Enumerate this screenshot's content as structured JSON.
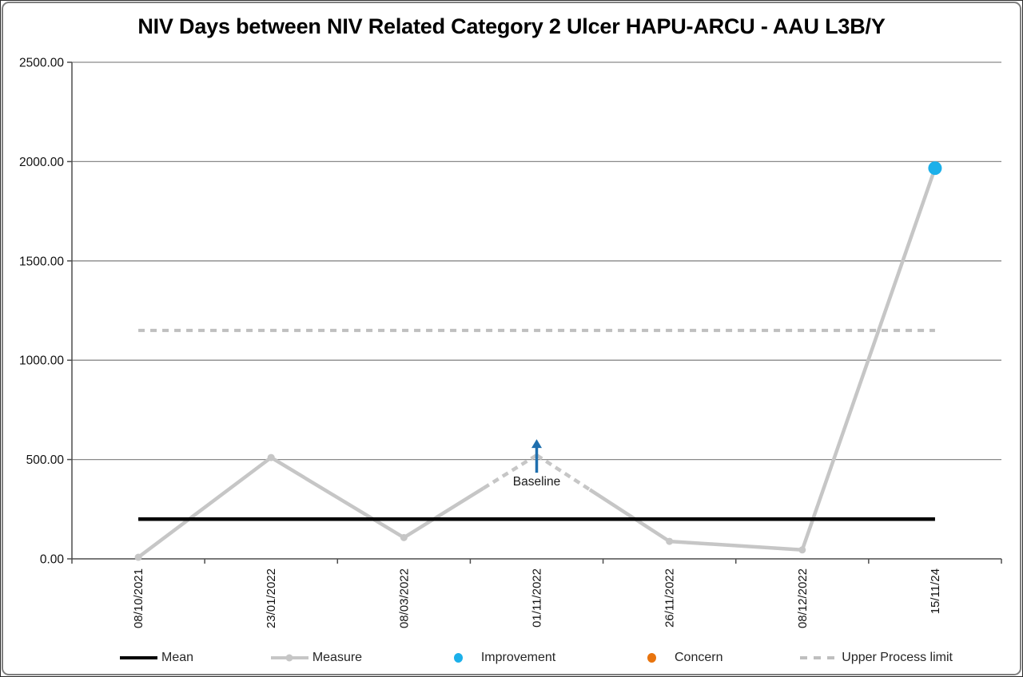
{
  "title": "NIV Days between NIV Related Category 2 Ulcer HAPU-ARCU - AAU L3B/Y",
  "chart_data": {
    "type": "line",
    "title": "NIV Days between NIV Related Category 2 Ulcer HAPU-ARCU - AAU L3B/Y",
    "categories": [
      "08/10/2021",
      "23/01/2022",
      "08/03/2022",
      "01/11/2022",
      "26/11/2022",
      "08/12/2022",
      "15/11/24"
    ],
    "series": [
      {
        "name": "Measure",
        "type": "line",
        "values": [
          8,
          510,
          107,
          522,
          88,
          45,
          1967
        ]
      },
      {
        "name": "Mean",
        "type": "hline",
        "value": 200
      },
      {
        "name": "Upper Process limit",
        "type": "hline-dashed",
        "value": 1150
      }
    ],
    "special_points": {
      "improvement_index": 6,
      "improvement_value": 1967
    },
    "annotations": {
      "baseline": {
        "label": "Baseline",
        "category_index": 3
      }
    },
    "ylim": [
      0,
      2500
    ],
    "ytick_labels": [
      "2500.00",
      "2000.00",
      "1500.00",
      "1000.00",
      "500.00",
      "0.00"
    ],
    "grid": true,
    "legend_position": "bottom",
    "xlabel": "",
    "ylabel": ""
  },
  "legend": {
    "items": [
      {
        "label": "Mean",
        "swatch": "line",
        "color": "#000000"
      },
      {
        "label": "Measure",
        "swatch": "line-marker",
        "color": "#C6C6C6"
      },
      {
        "label": "Improvement",
        "swatch": "dot",
        "color": "#1CB0EA"
      },
      {
        "label": "Concern",
        "swatch": "dot",
        "color": "#E8740E"
      },
      {
        "label": "Upper Process limit",
        "swatch": "dash",
        "color": "#BFBFBF"
      }
    ]
  },
  "colors": {
    "measure": "#C6C6C6",
    "mean": "#000000",
    "upper_process_limit": "#BFBFBF",
    "improvement": "#1CB0EA",
    "concern": "#E8740E",
    "baseline_arrow": "#1F6FAE",
    "gridline": "#8A8A8A",
    "axis": "#4D4D4D",
    "tick_text": "#111111",
    "background": "#FFFFFF",
    "border": "#7F7F7F"
  }
}
